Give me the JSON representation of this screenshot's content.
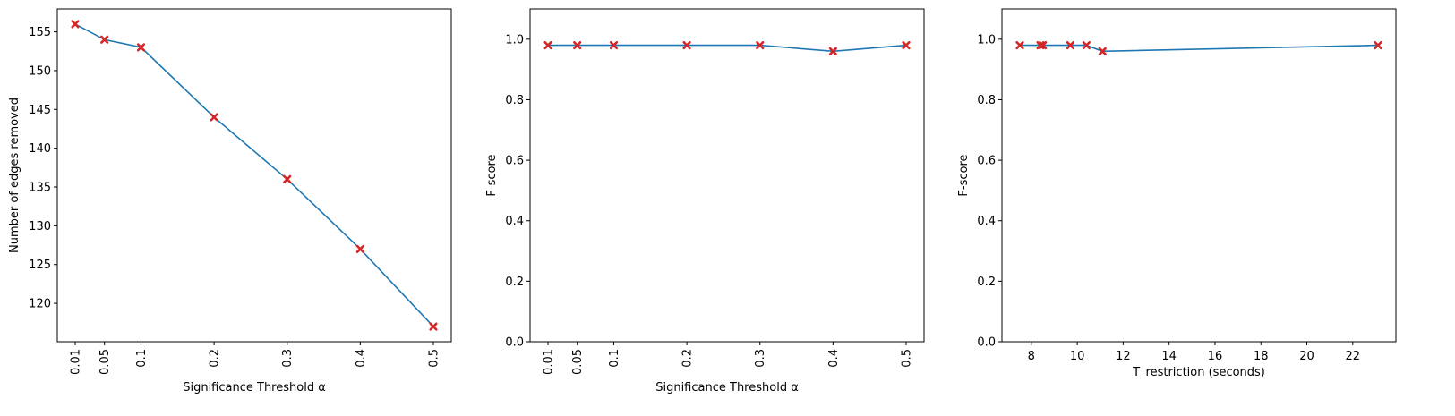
{
  "chart_data": [
    {
      "type": "line",
      "x": [
        0.01,
        0.05,
        0.1,
        0.2,
        0.3,
        0.4,
        0.5
      ],
      "x_tick_values": [
        0.01,
        0.05,
        0.1,
        0.2,
        0.3,
        0.4,
        0.5
      ],
      "x_tick_labels": [
        "0.01",
        "0.05",
        "0.1",
        "0.2",
        "0.3",
        "0.4",
        "0.5"
      ],
      "x_tick_rotation": "vertical",
      "y_tick_values": [
        120,
        125,
        130,
        135,
        140,
        145,
        150,
        155
      ],
      "y_tick_labels": [
        "120",
        "125",
        "130",
        "135",
        "140",
        "145",
        "150",
        "155"
      ],
      "series": [
        {
          "values": [
            156,
            154,
            153,
            144,
            136,
            127,
            117
          ]
        }
      ],
      "xlabel": "Significance Threshold α",
      "ylabel": "Number of edges removed",
      "xlim": [
        -0.0145,
        0.5245
      ],
      "ylim": [
        115.05,
        157.95
      ],
      "grid": false
    },
    {
      "type": "line",
      "x": [
        0.01,
        0.05,
        0.1,
        0.2,
        0.3,
        0.4,
        0.5
      ],
      "x_tick_values": [
        0.01,
        0.05,
        0.1,
        0.2,
        0.3,
        0.4,
        0.5
      ],
      "x_tick_labels": [
        "0.01",
        "0.05",
        "0.1",
        "0.2",
        "0.3",
        "0.4",
        "0.5"
      ],
      "x_tick_rotation": "vertical",
      "y_tick_values": [
        0.0,
        0.2,
        0.4,
        0.6,
        0.8,
        1.0
      ],
      "y_tick_labels": [
        "0.0",
        "0.2",
        "0.4",
        "0.6",
        "0.8",
        "1.0"
      ],
      "series": [
        {
          "values": [
            0.98,
            0.98,
            0.98,
            0.98,
            0.98,
            0.96,
            0.98
          ]
        }
      ],
      "xlabel": "Significance Threshold α",
      "ylabel": "F-score",
      "xlim": [
        -0.0145,
        0.5245
      ],
      "ylim": [
        0.0,
        1.1
      ],
      "grid": false
    },
    {
      "type": "line",
      "x": [
        7.5,
        8.4,
        8.5,
        9.7,
        10.4,
        11.1,
        23.1
      ],
      "x_tick_values": [
        8,
        10,
        12,
        14,
        16,
        18,
        20,
        22
      ],
      "x_tick_labels": [
        "8",
        "10",
        "12",
        "14",
        "16",
        "18",
        "20",
        "22"
      ],
      "x_tick_rotation": "horizontal",
      "y_tick_values": [
        0.0,
        0.2,
        0.4,
        0.6,
        0.8,
        1.0
      ],
      "y_tick_labels": [
        "0.0",
        "0.2",
        "0.4",
        "0.6",
        "0.8",
        "1.0"
      ],
      "series": [
        {
          "values": [
            0.98,
            0.98,
            0.98,
            0.98,
            0.98,
            0.96,
            0.98
          ]
        }
      ],
      "xlabel": "T_restriction (seconds)",
      "ylabel": "F-score",
      "xlim": [
        6.72,
        23.88
      ],
      "ylim": [
        0.0,
        1.1
      ],
      "grid": false
    }
  ],
  "colors": {
    "line": "#1f77b4",
    "marker": "#d62728",
    "axes": "#000000"
  }
}
